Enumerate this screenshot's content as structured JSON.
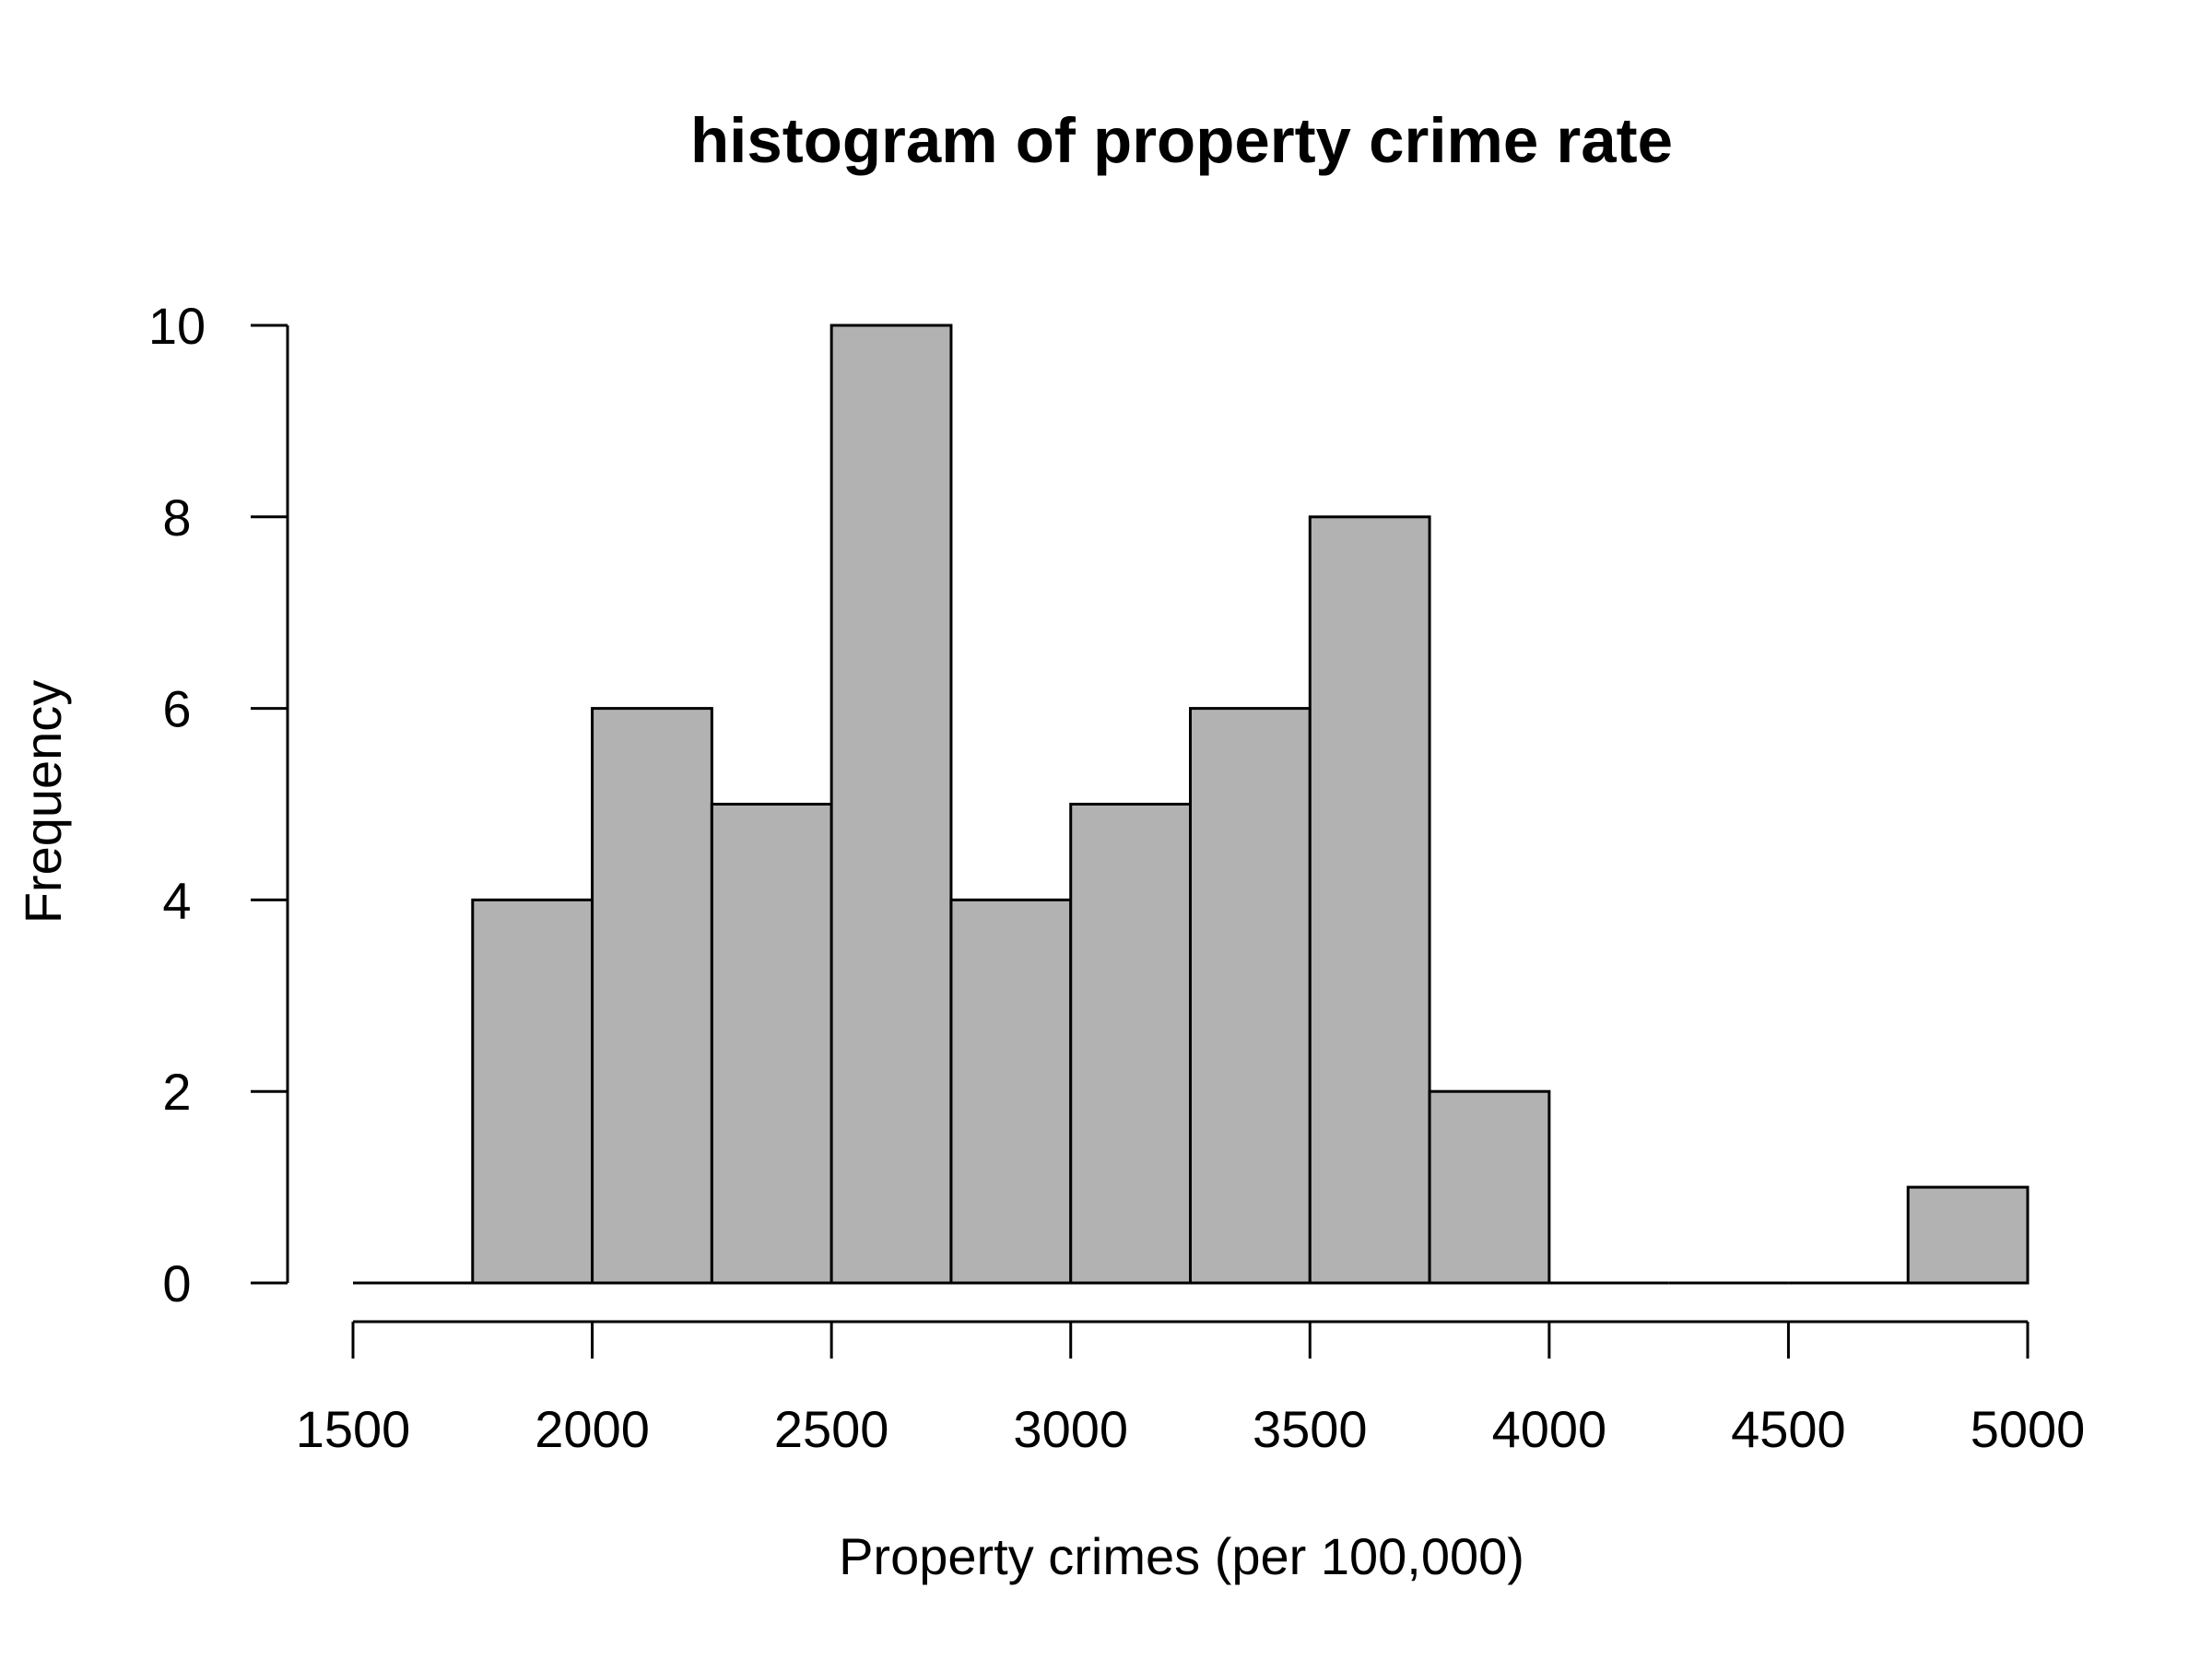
{
  "chart_data": {
    "type": "bar",
    "title": "histogram of property crime rate",
    "xlabel": "Property crimes (per 100,000)",
    "ylabel": "Frequency",
    "bins": [
      {
        "x0": 1500,
        "x1": 1750,
        "count": 0
      },
      {
        "x0": 1750,
        "x1": 2000,
        "count": 4
      },
      {
        "x0": 2000,
        "x1": 2250,
        "count": 6
      },
      {
        "x0": 2250,
        "x1": 2500,
        "count": 5
      },
      {
        "x0": 2500,
        "x1": 2750,
        "count": 10
      },
      {
        "x0": 2750,
        "x1": 3000,
        "count": 4
      },
      {
        "x0": 3000,
        "x1": 3250,
        "count": 5
      },
      {
        "x0": 3250,
        "x1": 3500,
        "count": 6
      },
      {
        "x0": 3500,
        "x1": 3750,
        "count": 8
      },
      {
        "x0": 3750,
        "x1": 4000,
        "count": 2
      },
      {
        "x0": 4000,
        "x1": 4250,
        "count": 0
      },
      {
        "x0": 4250,
        "x1": 4500,
        "count": 0
      },
      {
        "x0": 4500,
        "x1": 4750,
        "count": 0
      },
      {
        "x0": 4750,
        "x1": 5000,
        "count": 1
      }
    ],
    "xlim": [
      1500,
      5000
    ],
    "ylim": [
      0,
      10
    ],
    "x_ticks": [
      1500,
      2000,
      2500,
      3000,
      3500,
      4000,
      4500,
      5000
    ],
    "y_ticks": [
      0,
      2,
      4,
      6,
      8,
      10
    ],
    "bar_color": "#b2b2b2",
    "grid": false,
    "legend": "none"
  }
}
